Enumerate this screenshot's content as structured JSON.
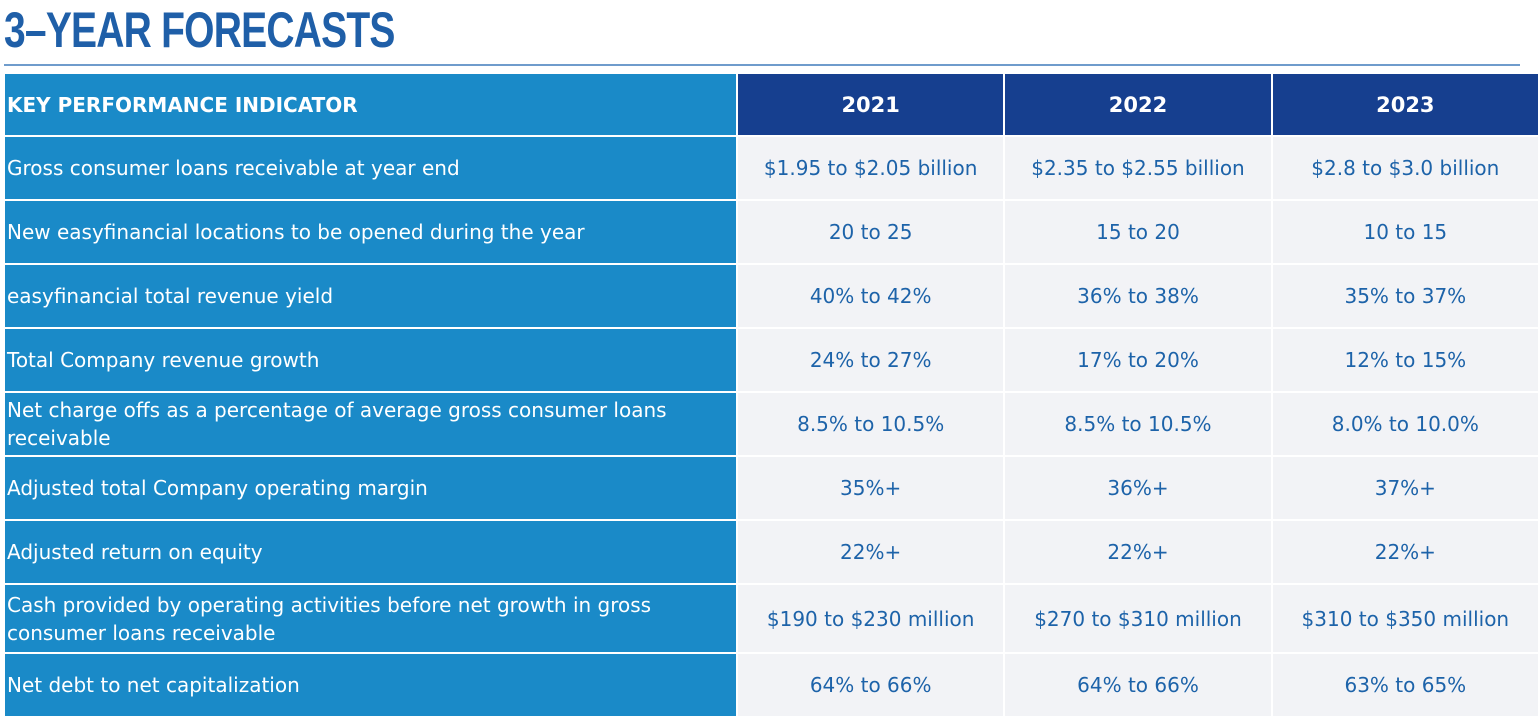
{
  "title": "3–YEAR FORECASTS",
  "table": {
    "header_label": "KEY PERFORMANCE INDICATOR",
    "years": [
      "2021",
      "2022",
      "2023"
    ],
    "rows": [
      {
        "label": "Gross consumer loans receivable at year end",
        "values": [
          "$1.95 to $2.05 billion",
          "$2.35 to $2.55 billion",
          "$2.8 to $3.0 billion"
        ]
      },
      {
        "label": "New easyfinancial locations to be opened during the year",
        "values": [
          "20 to 25",
          "15 to 20",
          "10 to 15"
        ]
      },
      {
        "label": "easyfinancial total revenue yield",
        "values": [
          "40% to 42%",
          "36% to 38%",
          "35% to 37%"
        ]
      },
      {
        "label": "Total Company revenue growth",
        "values": [
          "24% to 27%",
          "17% to 20%",
          "12% to 15%"
        ]
      },
      {
        "label": "Net charge offs as a percentage of average gross consumer loans receivable",
        "values": [
          "8.5% to 10.5%",
          "8.5% to 10.5%",
          "8.0% to 10.0%"
        ]
      },
      {
        "label": "Adjusted total Company operating margin",
        "values": [
          "35%+",
          "36%+",
          "37%+"
        ]
      },
      {
        "label": "Adjusted return on equity",
        "values": [
          "22%+",
          "22%+",
          "22%+"
        ]
      },
      {
        "label": "Cash provided by operating activities before net growth in gross consumer loans receivable",
        "values": [
          "$190 to $230 million",
          "$270 to $310 million",
          "$310 to $350 million"
        ]
      },
      {
        "label": "Net debt to net capitalization",
        "values": [
          "64% to 66%",
          "64% to 66%",
          "63% to 65%"
        ]
      }
    ]
  },
  "colors": {
    "title": "#1f5fa8",
    "label_cell": "#1a8ac8",
    "year_header": "#163f8f",
    "value_cell_bg": "#f2f3f6",
    "value_text": "#1d63a9"
  }
}
